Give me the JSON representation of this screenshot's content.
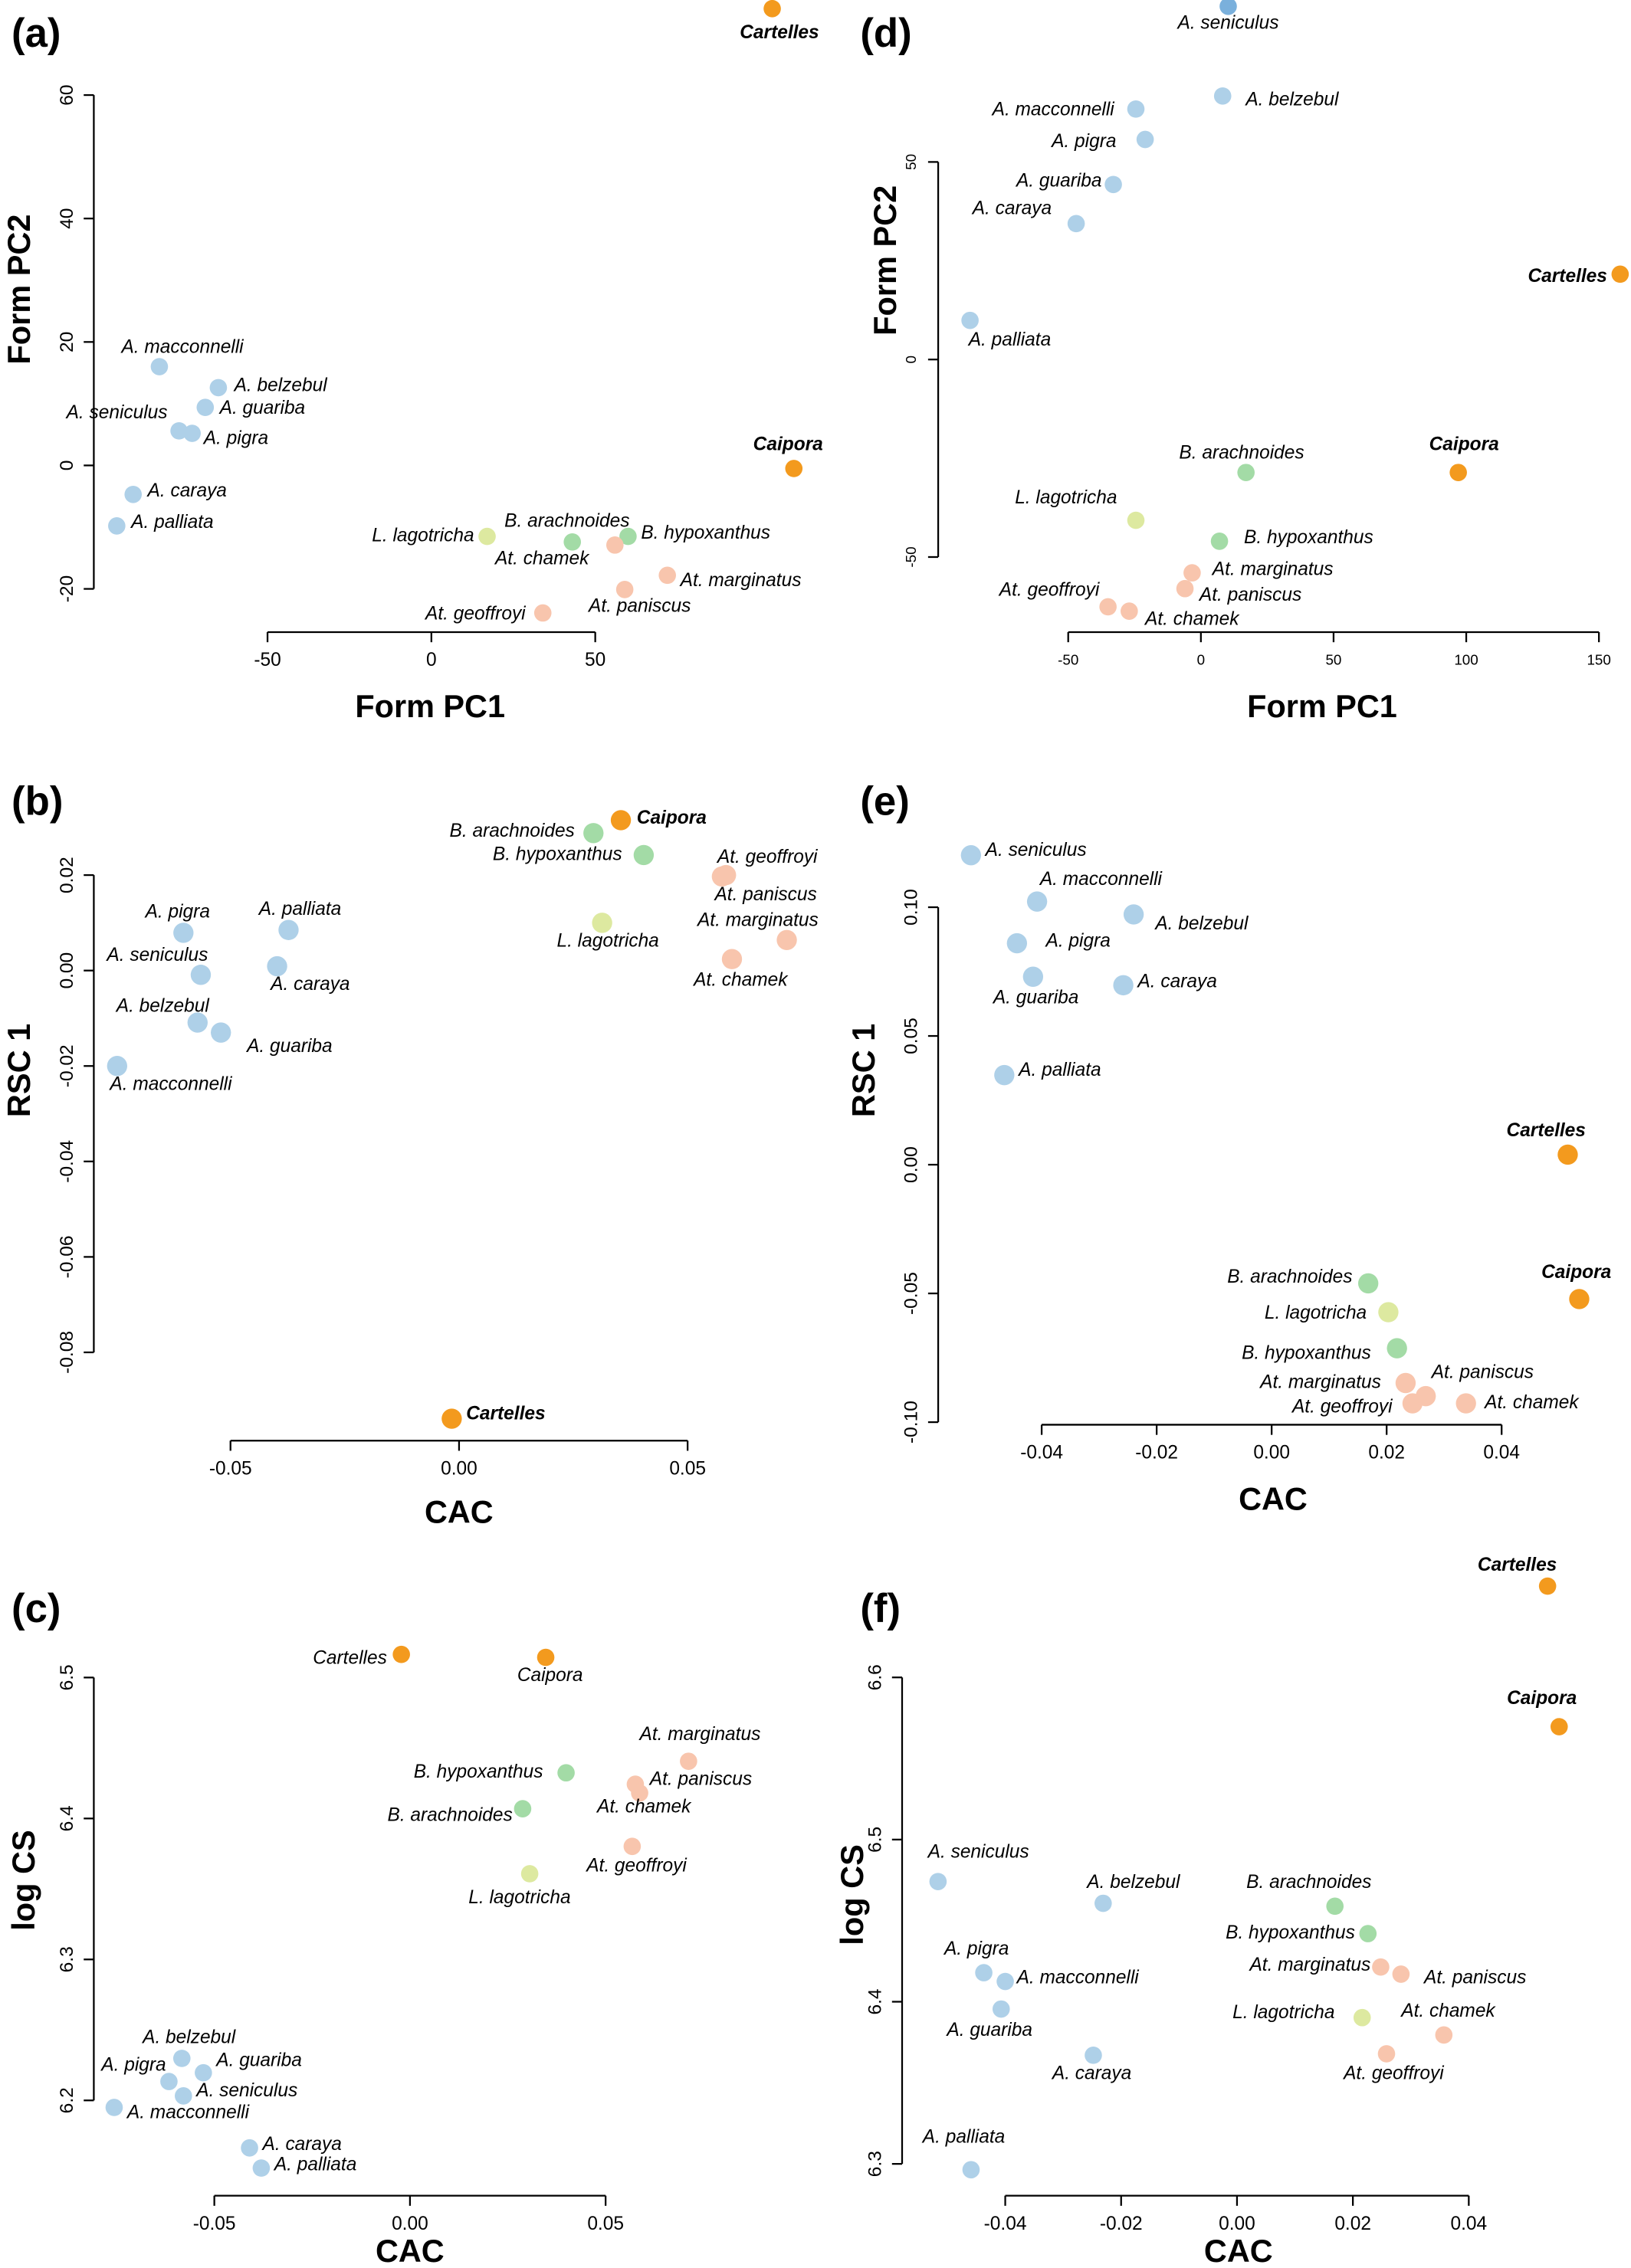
{
  "chart_data": [
    {
      "type": "scatter",
      "panel": "(a)",
      "xlabel": "Form PC1",
      "ylabel": "Form PC2",
      "xlim": [
        -103,
        115
      ],
      "ylim": [
        -27,
        75.4
      ],
      "xticks": [
        -50,
        0,
        50
      ],
      "yticks": [
        -20,
        0,
        20,
        40,
        60
      ],
      "points": [
        {
          "label": "Cartelles",
          "x": 104,
          "y": 74,
          "color": "#f39a1e",
          "bold": true
        },
        {
          "label": "A. macconnelli",
          "x": -83,
          "y": 16,
          "color": "#aed0e8"
        },
        {
          "label": "A. belzebul",
          "x": -65,
          "y": 12.6,
          "color": "#aed0e8"
        },
        {
          "label": "A. guariba",
          "x": -69,
          "y": 9.4,
          "color": "#aed0e8"
        },
        {
          "label": "A. seniculus",
          "x": -77,
          "y": 5.6,
          "color": "#aed0e8"
        },
        {
          "label": "A. pigra",
          "x": -73,
          "y": 5.2,
          "color": "#aed0e8"
        },
        {
          "label": "A. caraya",
          "x": -91,
          "y": -4.7,
          "color": "#aed0e8"
        },
        {
          "label": "A. palliata",
          "x": -96,
          "y": -9.8,
          "color": "#aed0e8"
        },
        {
          "label": "Caipora",
          "x": 110.6,
          "y": -0.5,
          "color": "#f39a1e",
          "bold": true
        },
        {
          "label": "L. lagotricha",
          "x": 17,
          "y": -11.5,
          "color": "#dde9a0"
        },
        {
          "label": "B. arachnoides",
          "x": 43,
          "y": -12.4,
          "color": "#a3dba6"
        },
        {
          "label": "B. hypoxanthus",
          "x": 60,
          "y": -11.5,
          "color": "#a3dba6"
        },
        {
          "label": "At. chamek",
          "x": 56,
          "y": -12.9,
          "color": "#f8c5ad"
        },
        {
          "label": "At. marginatus",
          "x": 72,
          "y": -17.8,
          "color": "#f8c5ad"
        },
        {
          "label": "At. paniscus",
          "x": 59,
          "y": -20.1,
          "color": "#f8c5ad"
        },
        {
          "label": "At. geoffroyi",
          "x": 34,
          "y": -23.9,
          "color": "#f8c5ad"
        }
      ]
    },
    {
      "type": "scatter",
      "panel": "(b)",
      "xlabel": "CAC",
      "ylabel": "RSC 1",
      "xlim": [
        -0.0799,
        0.0764
      ],
      "ylim": [
        -0.0985,
        0.0397
      ],
      "xticks": [
        -0.05,
        {
          "value": 0,
          "label": "0.00"
        },
        0.05
      ],
      "yticks": [
        -0.08,
        -0.06,
        -0.04,
        -0.02,
        {
          "value": 0,
          "label": "0.00"
        },
        0.02
      ],
      "points": [
        {
          "label": "B. arachnoides",
          "x": 0.0294,
          "y": 0.0288,
          "color": "#a3dba6"
        },
        {
          "label": "Caipora",
          "x": 0.0354,
          "y": 0.0315,
          "color": "#f39a1e",
          "bold": true
        },
        {
          "label": "B. hypoxanthus",
          "x": 0.0404,
          "y": 0.0242,
          "color": "#a3dba6"
        },
        {
          "label": "At. geoffroyi",
          "x": 0.0584,
          "y": 0.02,
          "color": "#f8c5ad"
        },
        {
          "label": "At. paniscus",
          "x": 0.0575,
          "y": 0.0197,
          "color": "#f8c5ad"
        },
        {
          "label": "L. lagotricha",
          "x": 0.0313,
          "y": 0.01,
          "color": "#dde9a0"
        },
        {
          "label": "At. marginatus",
          "x": 0.0717,
          "y": 0.0064,
          "color": "#f8c5ad"
        },
        {
          "label": "At. chamek",
          "x": 0.0597,
          "y": 0.0024,
          "color": "#f8c5ad"
        },
        {
          "label": "A. pigra",
          "x": -0.0603,
          "y": 0.0079,
          "color": "#aed0e8"
        },
        {
          "label": "A. palliata",
          "x": -0.0373,
          "y": 0.0085,
          "color": "#aed0e8"
        },
        {
          "label": "A. seniculus",
          "x": -0.0565,
          "y": -0.0009,
          "color": "#aed0e8"
        },
        {
          "label": "A. caraya",
          "x": -0.0398,
          "y": 0.0009,
          "color": "#aed0e8"
        },
        {
          "label": "A. belzebul",
          "x": -0.0572,
          "y": -0.0109,
          "color": "#aed0e8"
        },
        {
          "label": "A. guariba",
          "x": -0.0521,
          "y": -0.013,
          "color": "#aed0e8"
        },
        {
          "label": "A. macconnelli",
          "x": -0.0748,
          "y": -0.02,
          "color": "#aed0e8"
        },
        {
          "label": "Cartelles",
          "x": -0.0016,
          "y": -0.0939,
          "color": "#f39a1e",
          "bold": true
        }
      ]
    },
    {
      "type": "scatter",
      "panel": "(c)",
      "xlabel": "CAC",
      "ylabel": "log CS",
      "xlim": [
        -0.0808,
        0.1018
      ],
      "ylim": [
        6.1324,
        6.5716
      ],
      "xticks": [
        -0.05,
        {
          "value": 0,
          "label": "0.00"
        },
        0.05
      ],
      "yticks": [
        6.2,
        6.3,
        6.4,
        6.5
      ],
      "points": [
        {
          "label": "Cartelles",
          "x": -0.0022,
          "y": 6.5164,
          "color": "#f39a1e"
        },
        {
          "label": "Caipora",
          "x": 0.0347,
          "y": 6.5143,
          "color": "#f39a1e"
        },
        {
          "label": "At. marginatus",
          "x": 0.0712,
          "y": 6.4406,
          "color": "#f8c5ad"
        },
        {
          "label": "B. hypoxanthus",
          "x": 0.0399,
          "y": 6.4324,
          "color": "#a3dba6"
        },
        {
          "label": "At. paniscus",
          "x": 0.0576,
          "y": 6.4243,
          "color": "#f8c5ad"
        },
        {
          "label": "At. chamek",
          "x": 0.0587,
          "y": 6.4181,
          "color": "#f8c5ad"
        },
        {
          "label": "B. arachnoides",
          "x": 0.0288,
          "y": 6.4069,
          "color": "#a3dba6"
        },
        {
          "label": "At. geoffroyi",
          "x": 0.0568,
          "y": 6.3802,
          "color": "#f8c5ad"
        },
        {
          "label": "L. lagotricha",
          "x": 0.0306,
          "y": 6.3608,
          "color": "#dde9a0"
        },
        {
          "label": "A. belzebul",
          "x": -0.0583,
          "y": 6.2298,
          "color": "#aed0e8"
        },
        {
          "label": "A. guariba",
          "x": -0.0528,
          "y": 6.2196,
          "color": "#aed0e8"
        },
        {
          "label": "A. pigra",
          "x": -0.0616,
          "y": 6.2134,
          "color": "#aed0e8"
        },
        {
          "label": "A. seniculus",
          "x": -0.0579,
          "y": 6.2032,
          "color": "#aed0e8"
        },
        {
          "label": "A. macconnelli",
          "x": -0.0756,
          "y": 6.195,
          "color": "#aed0e8"
        },
        {
          "label": "A. caraya",
          "x": -0.041,
          "y": 6.1663,
          "color": "#aed0e8"
        },
        {
          "label": "A. palliata",
          "x": -0.038,
          "y": 6.152,
          "color": "#aed0e8"
        }
      ]
    },
    {
      "type": "scatter",
      "panel": "(d)",
      "xlabel": "Form PC1",
      "ylabel": "Form PC2",
      "xlim": [
        -99,
        161
      ],
      "ylim": [
        -69,
        91
      ],
      "xticks": [
        -50,
        0,
        50,
        100,
        150
      ],
      "yticks": [
        -50,
        0,
        50
      ],
      "points": [
        {
          "label": "A. seniculus",
          "x": 10.3,
          "y": 89.4,
          "color": "#7ab0dc"
        },
        {
          "label": "A. belzebul",
          "x": 8.2,
          "y": 66.7,
          "color": "#aed0e8"
        },
        {
          "label": "A. macconnelli",
          "x": -24.5,
          "y": 63.4,
          "color": "#aed0e8"
        },
        {
          "label": "A. pigra",
          "x": -21,
          "y": 55.7,
          "color": "#aed0e8"
        },
        {
          "label": "A. guariba",
          "x": -33,
          "y": 44.3,
          "color": "#aed0e8"
        },
        {
          "label": "A. caraya",
          "x": -47,
          "y": 34.4,
          "color": "#aed0e8"
        },
        {
          "label": "Cartelles",
          "x": 158,
          "y": 21.6,
          "color": "#f39a1e",
          "bold": true
        },
        {
          "label": "A. palliata",
          "x": -87,
          "y": 9.9,
          "color": "#aed0e8"
        },
        {
          "label": "B. arachnoides",
          "x": 17,
          "y": -28.6,
          "color": "#a3dba6"
        },
        {
          "label": "Caipora",
          "x": 97,
          "y": -28.6,
          "color": "#f39a1e",
          "bold": true
        },
        {
          "label": "L. lagotricha",
          "x": -24.5,
          "y": -40.7,
          "color": "#dde9a0"
        },
        {
          "label": "B. hypoxanthus",
          "x": 7,
          "y": -46,
          "color": "#a3dba6"
        },
        {
          "label": "At. marginatus",
          "x": -3.3,
          "y": -54,
          "color": "#f8c5ad"
        },
        {
          "label": "At. paniscus",
          "x": -6,
          "y": -58,
          "color": "#f8c5ad"
        },
        {
          "label": "At. geoffroyi",
          "x": -35,
          "y": -62.6,
          "color": "#f8c5ad"
        },
        {
          "label": "At. chamek",
          "x": -27,
          "y": -63.7,
          "color": "#f8c5ad"
        }
      ]
    },
    {
      "type": "scatter",
      "panel": "(e)",
      "xlabel": "CAC",
      "ylabel": "RSC 1",
      "xlim": [
        -0.058,
        0.062
      ],
      "ylim": [
        -0.101,
        0.149
      ],
      "xticks": [
        -0.04,
        -0.02,
        {
          "value": 0,
          "label": "0.00"
        },
        0.02,
        0.04
      ],
      "yticks": [
        {
          "value": -0.1,
          "label": "-0.10"
        },
        -0.05,
        {
          "value": 0,
          "label": "0.00"
        },
        0.05,
        {
          "value": 0.1,
          "label": "0.10"
        }
      ],
      "points": [
        {
          "label": "A. seniculus",
          "x": -0.0523,
          "y": 0.1202,
          "color": "#aed0e8"
        },
        {
          "label": "A. macconnelli",
          "x": -0.0408,
          "y": 0.1022,
          "color": "#aed0e8"
        },
        {
          "label": "A. belzebul",
          "x": -0.024,
          "y": 0.0972,
          "color": "#aed0e8"
        },
        {
          "label": "A. pigra",
          "x": -0.0443,
          "y": 0.086,
          "color": "#aed0e8"
        },
        {
          "label": "A. guariba",
          "x": -0.0415,
          "y": 0.073,
          "color": "#aed0e8"
        },
        {
          "label": "A. caraya",
          "x": -0.0258,
          "y": 0.0697,
          "color": "#aed0e8"
        },
        {
          "label": "A. palliata",
          "x": -0.0465,
          "y": 0.0348,
          "color": "#aed0e8"
        },
        {
          "label": "Cartelles",
          "x": 0.0515,
          "y": 0.0039,
          "color": "#f39a1e",
          "bold": true
        },
        {
          "label": "Caipora",
          "x": 0.0535,
          "y": -0.0522,
          "color": "#f39a1e",
          "bold": true
        },
        {
          "label": "B. arachnoides",
          "x": 0.0168,
          "y": -0.0461,
          "color": "#a3dba6"
        },
        {
          "label": "L. lagotricha",
          "x": 0.0203,
          "y": -0.0573,
          "color": "#dde9a0"
        },
        {
          "label": "B. hypoxanthus",
          "x": 0.0218,
          "y": -0.0713,
          "color": "#a3dba6"
        },
        {
          "label": "At. marginatus",
          "x": 0.0233,
          "y": -0.0848,
          "color": "#f8c5ad"
        },
        {
          "label": "At. paniscus",
          "x": 0.0268,
          "y": -0.0899,
          "color": "#f8c5ad"
        },
        {
          "label": "At. geoffroyi",
          "x": 0.0245,
          "y": -0.0927,
          "color": "#f8c5ad"
        },
        {
          "label": "At. chamek",
          "x": 0.0338,
          "y": -0.0927,
          "color": "#f8c5ad"
        }
      ]
    },
    {
      "type": "scatter",
      "panel": "(f)",
      "xlabel": "CAC",
      "ylabel": "log CS",
      "xlim": [
        -0.0578,
        0.0675
      ],
      "ylim": [
        6.2804,
        6.68
      ],
      "xticks": [
        -0.04,
        -0.02,
        {
          "value": 0,
          "label": "0.00"
        },
        0.02,
        0.04
      ],
      "yticks": [
        6.3,
        6.4,
        6.5,
        6.6
      ],
      "points": [
        {
          "label": "Cartelles",
          "x": 0.0536,
          "y": 6.6563,
          "color": "#f39a1e",
          "bold": true
        },
        {
          "label": "Caipora",
          "x": 0.0556,
          "y": 6.5696,
          "color": "#f39a1e",
          "bold": true
        },
        {
          "label": "A. seniculus",
          "x": -0.0516,
          "y": 6.4741,
          "color": "#aed0e8"
        },
        {
          "label": "A. belzebul",
          "x": -0.0231,
          "y": 6.4607,
          "color": "#aed0e8"
        },
        {
          "label": "B. arachnoides",
          "x": 0.0169,
          "y": 6.4589,
          "color": "#a3dba6"
        },
        {
          "label": "B. hypoxanthus",
          "x": 0.0226,
          "y": 6.442,
          "color": "#a3dba6"
        },
        {
          "label": "At. marginatus",
          "x": 0.0248,
          "y": 6.4214,
          "color": "#f8c5ad"
        },
        {
          "label": "At. paniscus",
          "x": 0.0283,
          "y": 6.417,
          "color": "#f8c5ad"
        },
        {
          "label": "A. pigra",
          "x": -0.0437,
          "y": 6.4179,
          "color": "#aed0e8"
        },
        {
          "label": "A. macconnelli",
          "x": -0.04,
          "y": 6.4125,
          "color": "#aed0e8"
        },
        {
          "label": "A. guariba",
          "x": -0.0407,
          "y": 6.3955,
          "color": "#aed0e8"
        },
        {
          "label": "L. lagotricha",
          "x": 0.0216,
          "y": 6.3902,
          "color": "#dde9a0"
        },
        {
          "label": "At. chamek",
          "x": 0.0357,
          "y": 6.3795,
          "color": "#f8c5ad"
        },
        {
          "label": "A. caraya",
          "x": -0.0248,
          "y": 6.367,
          "color": "#aed0e8"
        },
        {
          "label": "At. geoffroyi",
          "x": 0.0258,
          "y": 6.3679,
          "color": "#f8c5ad"
        },
        {
          "label": "A. palliata",
          "x": -0.0459,
          "y": 6.2964,
          "color": "#aed0e8"
        }
      ]
    }
  ]
}
